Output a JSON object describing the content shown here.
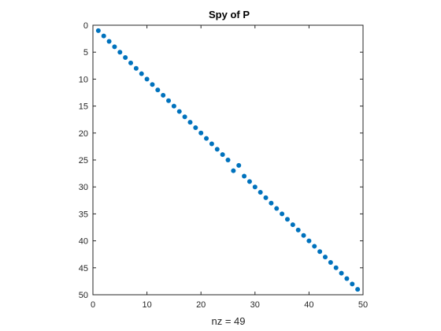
{
  "chart_data": {
    "type": "scatter",
    "title": "Spy of P",
    "xlabel": "nz = 49",
    "ylabel": "",
    "xlim": [
      0,
      50
    ],
    "ylim": [
      0,
      50
    ],
    "y_reversed": true,
    "x_ticks": [
      "0",
      "10",
      "20",
      "30",
      "40",
      "50"
    ],
    "y_ticks": [
      "0",
      "5",
      "10",
      "15",
      "20",
      "25",
      "30",
      "35",
      "40",
      "45",
      "50"
    ],
    "marker_color": "#0072BD",
    "series": [
      {
        "points": [
          [
            1,
            1
          ],
          [
            2,
            2
          ],
          [
            3,
            3
          ],
          [
            4,
            4
          ],
          [
            5,
            5
          ],
          [
            6,
            6
          ],
          [
            7,
            7
          ],
          [
            8,
            8
          ],
          [
            9,
            9
          ],
          [
            10,
            10
          ],
          [
            11,
            11
          ],
          [
            12,
            12
          ],
          [
            13,
            13
          ],
          [
            14,
            14
          ],
          [
            15,
            15
          ],
          [
            16,
            16
          ],
          [
            17,
            17
          ],
          [
            18,
            18
          ],
          [
            19,
            19
          ],
          [
            20,
            20
          ],
          [
            21,
            21
          ],
          [
            22,
            22
          ],
          [
            23,
            23
          ],
          [
            24,
            24
          ],
          [
            25,
            25
          ],
          [
            26,
            27
          ],
          [
            27,
            26
          ],
          [
            28,
            28
          ],
          [
            29,
            29
          ],
          [
            30,
            30
          ],
          [
            31,
            31
          ],
          [
            32,
            32
          ],
          [
            33,
            33
          ],
          [
            34,
            34
          ],
          [
            35,
            35
          ],
          [
            36,
            36
          ],
          [
            37,
            37
          ],
          [
            38,
            38
          ],
          [
            39,
            39
          ],
          [
            40,
            40
          ],
          [
            41,
            41
          ],
          [
            42,
            42
          ],
          [
            43,
            43
          ],
          [
            44,
            44
          ],
          [
            45,
            45
          ],
          [
            46,
            46
          ],
          [
            47,
            47
          ],
          [
            48,
            48
          ],
          [
            49,
            49
          ]
        ]
      }
    ]
  }
}
